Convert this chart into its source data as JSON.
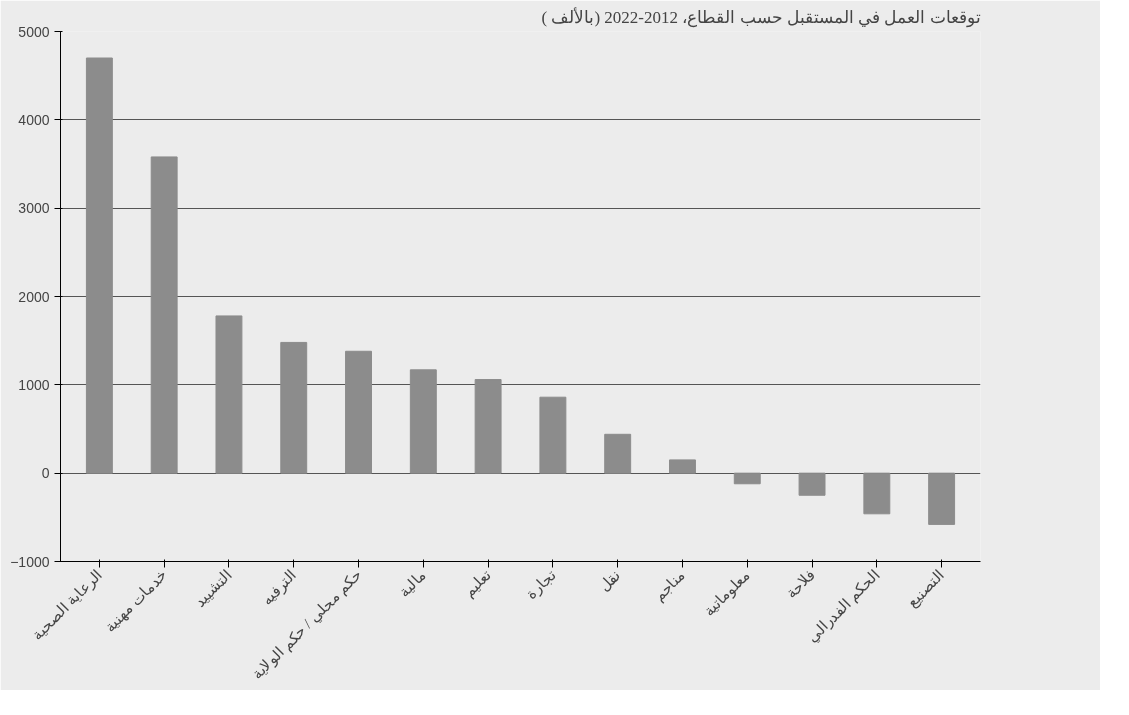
{
  "chart_data": {
    "type": "bar",
    "title": "توقعات العمل في المستقبل حسب القطاع، 2012-2022 (بالألف )",
    "categories": [
      "الرعاية الصحية",
      "خدمات مهنية",
      "التشييد",
      "الترفيه",
      "حكم محلي / حكم الولاية",
      "مالية",
      "تعليم",
      "تجارة",
      "نقل",
      "مناجم",
      "معلوماتية",
      "فلاحة",
      "الحكم الفدرالي",
      "التصنيع"
    ],
    "values": [
      4700,
      3580,
      1780,
      1480,
      1380,
      1170,
      1060,
      860,
      440,
      150,
      -120,
      -250,
      -460,
      -580
    ],
    "color": "#8c8c8c",
    "ylim": [
      -1000,
      5000
    ],
    "yticks": [
      -1000,
      0,
      1000,
      2000,
      3000,
      4000,
      5000
    ],
    "grid": "y"
  }
}
